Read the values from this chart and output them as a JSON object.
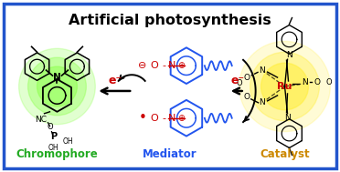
{
  "title": "Artificial photosynthesis",
  "title_fontsize": 11.5,
  "title_fontweight": "bold",
  "title_color": "#000000",
  "border_color": "#2255cc",
  "border_linewidth": 2.5,
  "bg_color": "#ffffff",
  "label_chromophore": "Chromophore",
  "label_mediator": "Mediator",
  "label_catalyst": "Catalyst",
  "label_chromophore_color": "#22aa22",
  "label_mediator_color": "#2255ee",
  "label_catalyst_color": "#cc8800",
  "label_fontsize": 8.5,
  "label_fontweight": "bold",
  "electron_color": "#cc0000",
  "mediator_ring_color": "#2255ee",
  "no_label_color": "#cc0000",
  "ru_label_color": "#cc0000",
  "wavy_color": "#2255ee",
  "arrow_color": "#000000"
}
